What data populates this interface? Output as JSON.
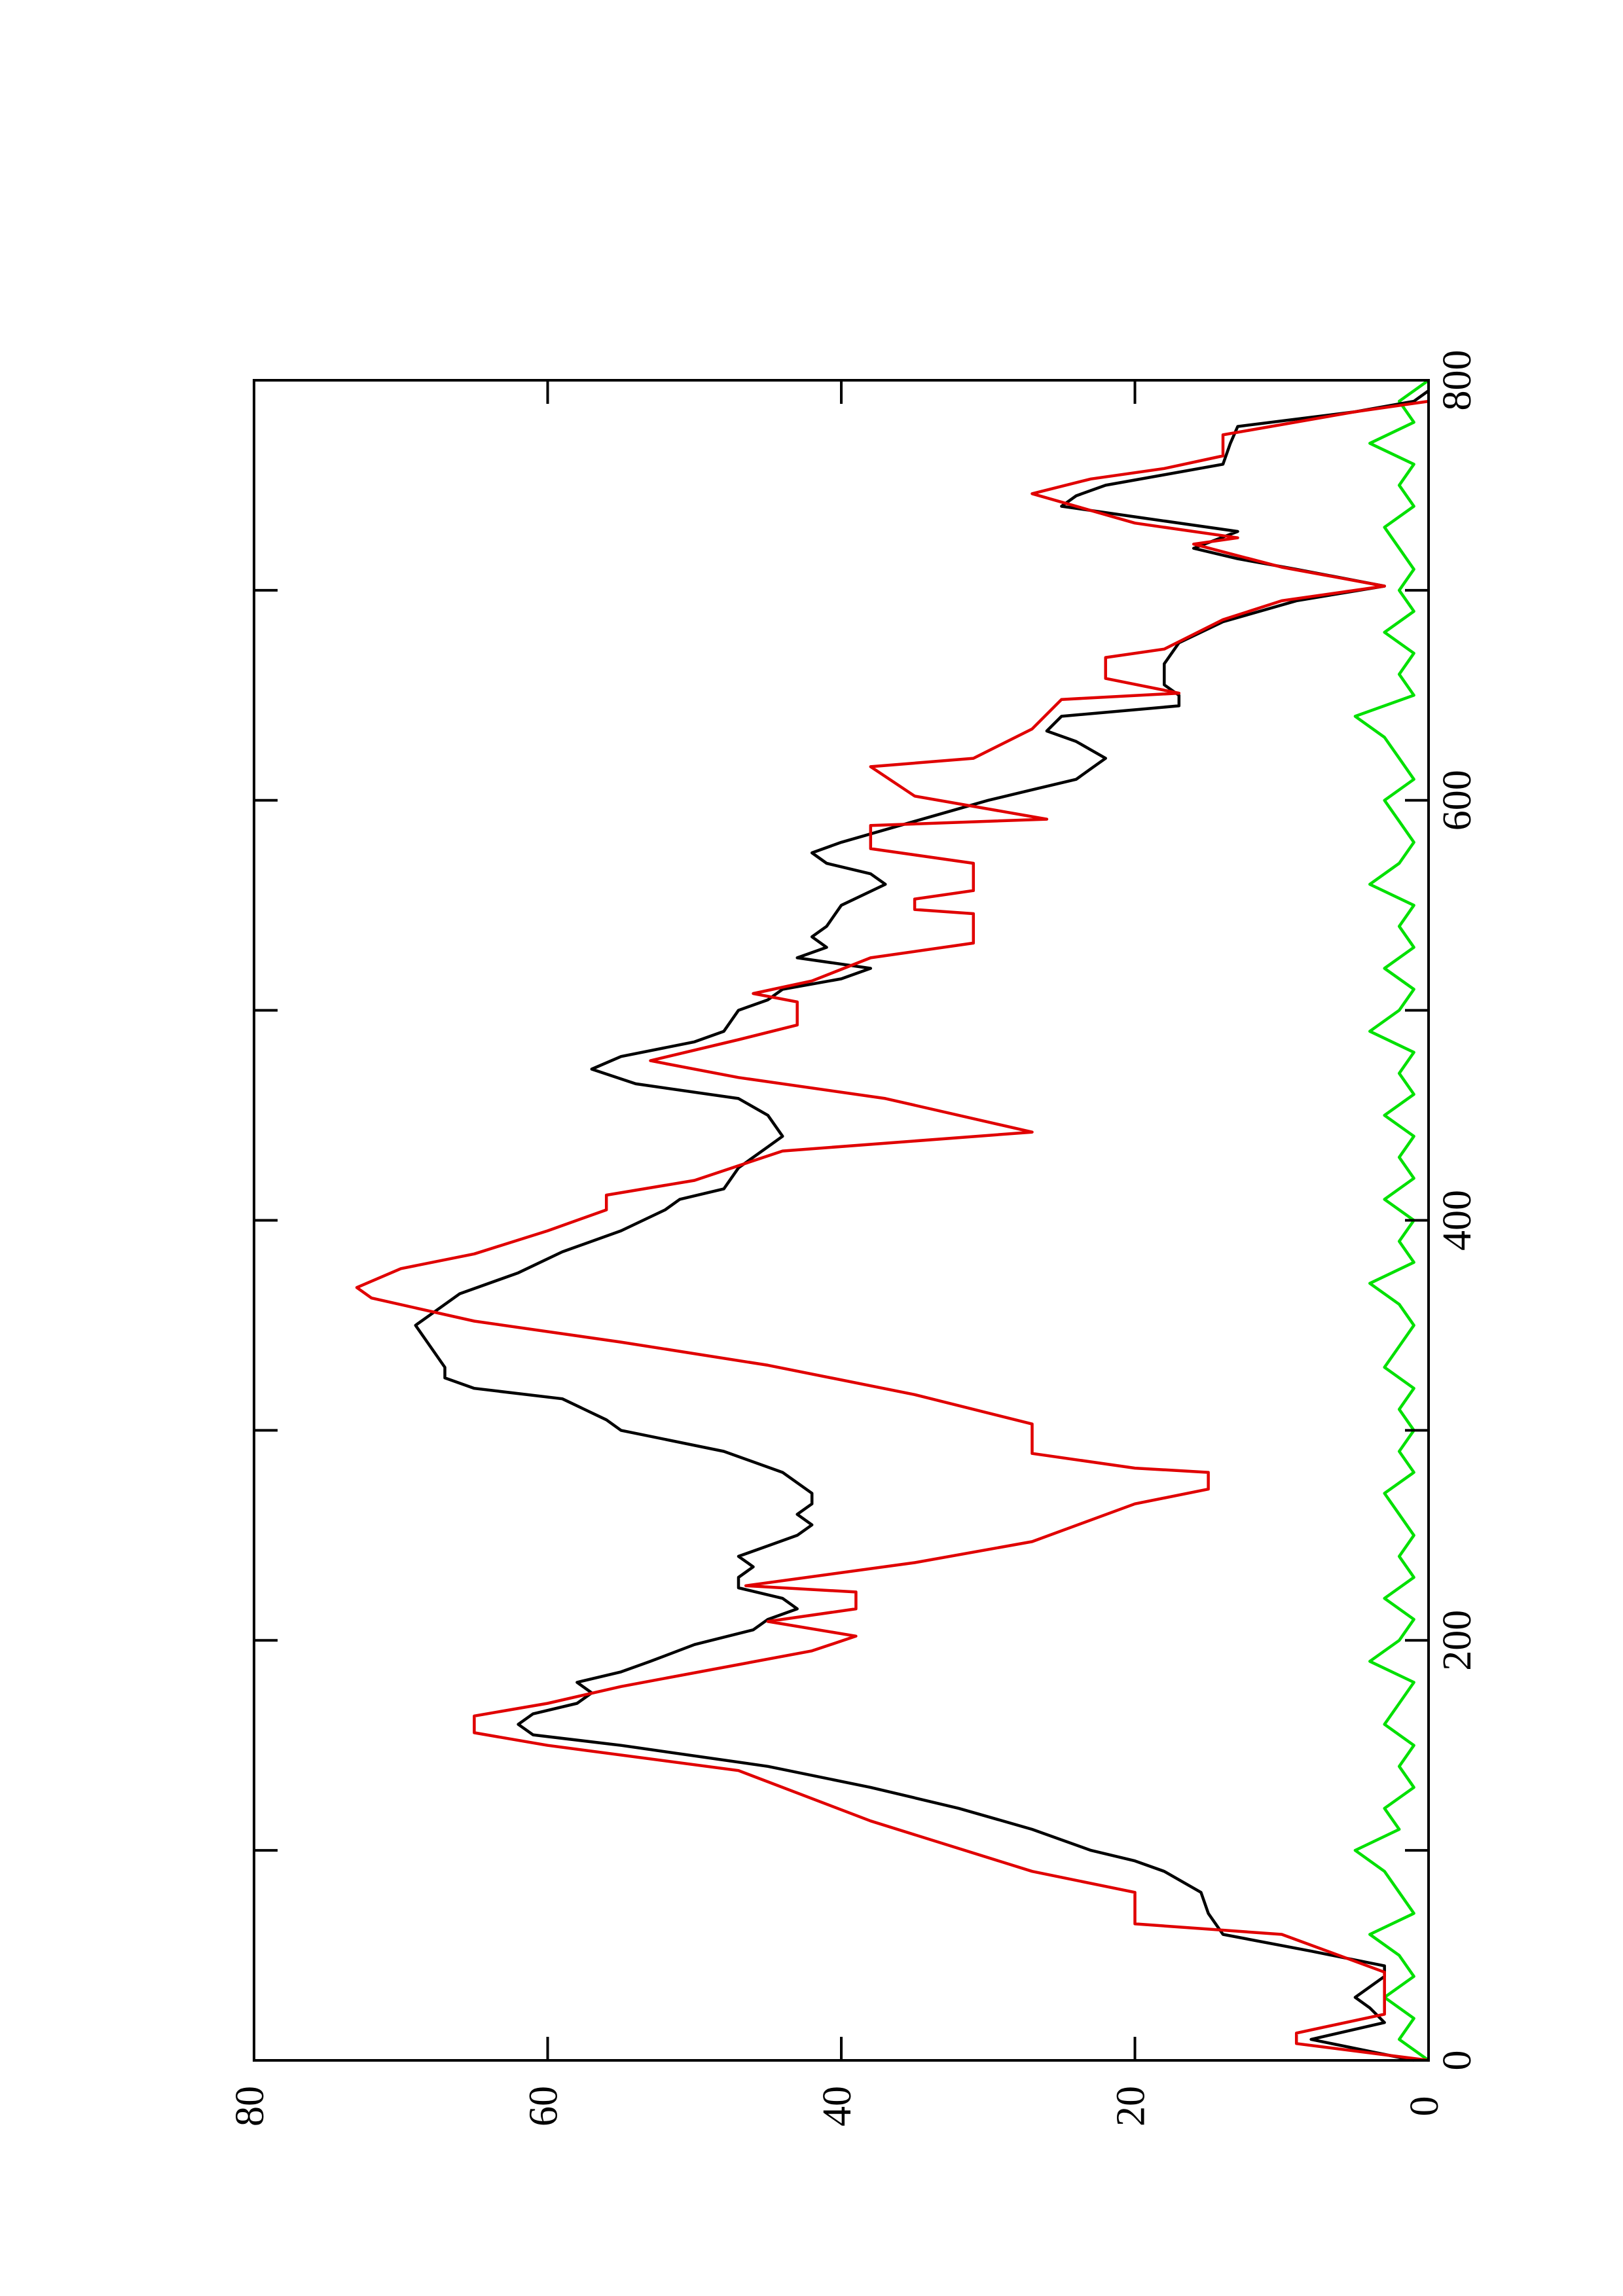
{
  "chart_data": {
    "type": "line",
    "xlim": [
      0,
      800
    ],
    "xticks": [
      0,
      200,
      400,
      600,
      800
    ],
    "xminorticks": [
      100,
      300,
      500,
      700
    ],
    "ylim": [
      0,
      80
    ],
    "yticks": [
      0,
      20,
      40,
      60,
      80
    ],
    "series": [
      {
        "color": "#00e000",
        "x": [
          0,
          10,
          20,
          30,
          40,
          50,
          60,
          70,
          80,
          90,
          100,
          110,
          120,
          130,
          140,
          150,
          160,
          170,
          180,
          190,
          200,
          210,
          220,
          230,
          240,
          250,
          260,
          270,
          280,
          290,
          300,
          310,
          320,
          330,
          340,
          350,
          360,
          370,
          380,
          390,
          400,
          410,
          420,
          430,
          440,
          450,
          460,
          470,
          480,
          490,
          500,
          510,
          520,
          530,
          540,
          550,
          560,
          570,
          580,
          590,
          600,
          610,
          620,
          630,
          640,
          650,
          660,
          670,
          680,
          690,
          700,
          710,
          720,
          730,
          740,
          750,
          760,
          770,
          780,
          790,
          800
        ],
        "values": [
          0,
          2,
          1,
          3,
          1,
          2,
          4,
          1,
          2,
          3,
          5,
          2,
          3,
          1,
          2,
          1,
          3,
          2,
          1,
          4,
          2,
          1,
          3,
          1,
          2,
          1,
          2,
          3,
          1,
          2,
          1,
          2,
          1,
          3,
          2,
          1,
          2,
          4,
          1,
          2,
          1,
          3,
          1,
          2,
          1,
          3,
          1,
          2,
          1,
          4,
          2,
          1,
          3,
          1,
          2,
          1,
          4,
          2,
          1,
          2,
          3,
          1,
          2,
          3,
          5,
          1,
          2,
          1,
          3,
          1,
          2,
          1,
          2,
          3,
          1,
          2,
          1,
          4,
          1,
          2,
          0
        ]
      },
      {
        "color": "#000000",
        "x": [
          0,
          10,
          18,
          25,
          30,
          35,
          40,
          45,
          52,
          60,
          70,
          80,
          90,
          95,
          100,
          110,
          120,
          130,
          140,
          150,
          155,
          160,
          165,
          170,
          175,
          180,
          185,
          190,
          198,
          205,
          210,
          215,
          220,
          225,
          230,
          235,
          240,
          245,
          250,
          255,
          260,
          265,
          270,
          280,
          290,
          300,
          305,
          315,
          320,
          325,
          330,
          340,
          350,
          355,
          365,
          375,
          385,
          395,
          405,
          410,
          415,
          425,
          435,
          440,
          450,
          458,
          465,
          472,
          478,
          485,
          490,
          500,
          505,
          510,
          515,
          520,
          525,
          530,
          535,
          540,
          550,
          560,
          565,
          570,
          575,
          580,
          590,
          600,
          605,
          610,
          615,
          620,
          628,
          633,
          640,
          645,
          650,
          655,
          665,
          675,
          685,
          695,
          702,
          710,
          715,
          720,
          728,
          735,
          740,
          745,
          750,
          755,
          760,
          770,
          778,
          785,
          790,
          795
        ],
        "values": [
          1,
          8,
          3,
          4,
          5,
          4,
          3,
          3,
          8,
          14,
          15,
          15.5,
          18,
          20,
          23,
          27,
          32,
          38,
          45,
          55,
          61,
          62,
          61,
          58,
          57,
          58,
          55,
          53,
          50,
          46,
          45,
          43,
          44,
          47,
          47,
          46,
          47,
          45,
          43,
          42,
          43,
          42,
          42,
          44,
          48,
          55,
          56,
          59,
          65,
          67,
          67,
          68,
          69,
          68,
          66,
          62,
          59,
          55,
          52,
          51,
          48,
          47,
          45,
          44,
          45,
          47,
          54,
          57,
          55,
          50,
          48,
          47,
          45,
          44,
          40,
          38,
          43,
          41,
          42,
          41,
          40,
          37,
          38,
          41,
          42,
          40,
          35,
          30,
          27,
          24,
          23,
          22,
          24,
          26,
          25,
          17,
          17,
          18,
          18,
          17,
          14,
          9,
          3,
          9,
          13,
          16,
          13,
          20,
          25,
          24,
          22,
          18,
          14,
          13.5,
          13,
          5,
          1,
          0
        ]
      },
      {
        "color": "#e00000",
        "x": [
          0,
          8,
          13,
          22,
          42,
          60,
          65,
          80,
          90,
          114,
          138,
          150,
          156,
          164,
          170,
          178,
          195,
          202,
          209,
          215,
          223,
          226,
          237,
          247,
          265,
          272,
          280,
          282,
          289,
          303,
          317,
          331,
          342,
          352,
          363,
          368,
          377,
          384,
          395,
          405,
          412,
          419,
          433,
          442,
          458,
          468,
          476,
          486,
          493,
          504,
          508,
          514,
          525,
          532,
          546,
          548,
          553,
          557,
          570,
          577,
          588,
          591,
          602,
          616,
          620,
          634,
          648,
          651,
          658,
          668,
          672,
          686,
          695,
          702,
          711,
          722,
          725,
          732,
          746,
          753,
          758,
          764,
          774,
          785,
          790
        ],
        "values": [
          0,
          9,
          9,
          3,
          3,
          10,
          20,
          20,
          27,
          38,
          47,
          60,
          65,
          65,
          60,
          55,
          42,
          39,
          45,
          39,
          39,
          46.5,
          35,
          27,
          20,
          15,
          15,
          20,
          27,
          27,
          35,
          45,
          55,
          65,
          72,
          73,
          70,
          65,
          60,
          56,
          56,
          50,
          44,
          27,
          37,
          47,
          53,
          47,
          43,
          43,
          46,
          42,
          38,
          31,
          31,
          35,
          35,
          31,
          31,
          38,
          38,
          26,
          35,
          38,
          31,
          27,
          25,
          17,
          22,
          22,
          18,
          14,
          10,
          3,
          10,
          16,
          13,
          20,
          27,
          23,
          18,
          14,
          14,
          5,
          0
        ]
      }
    ]
  }
}
